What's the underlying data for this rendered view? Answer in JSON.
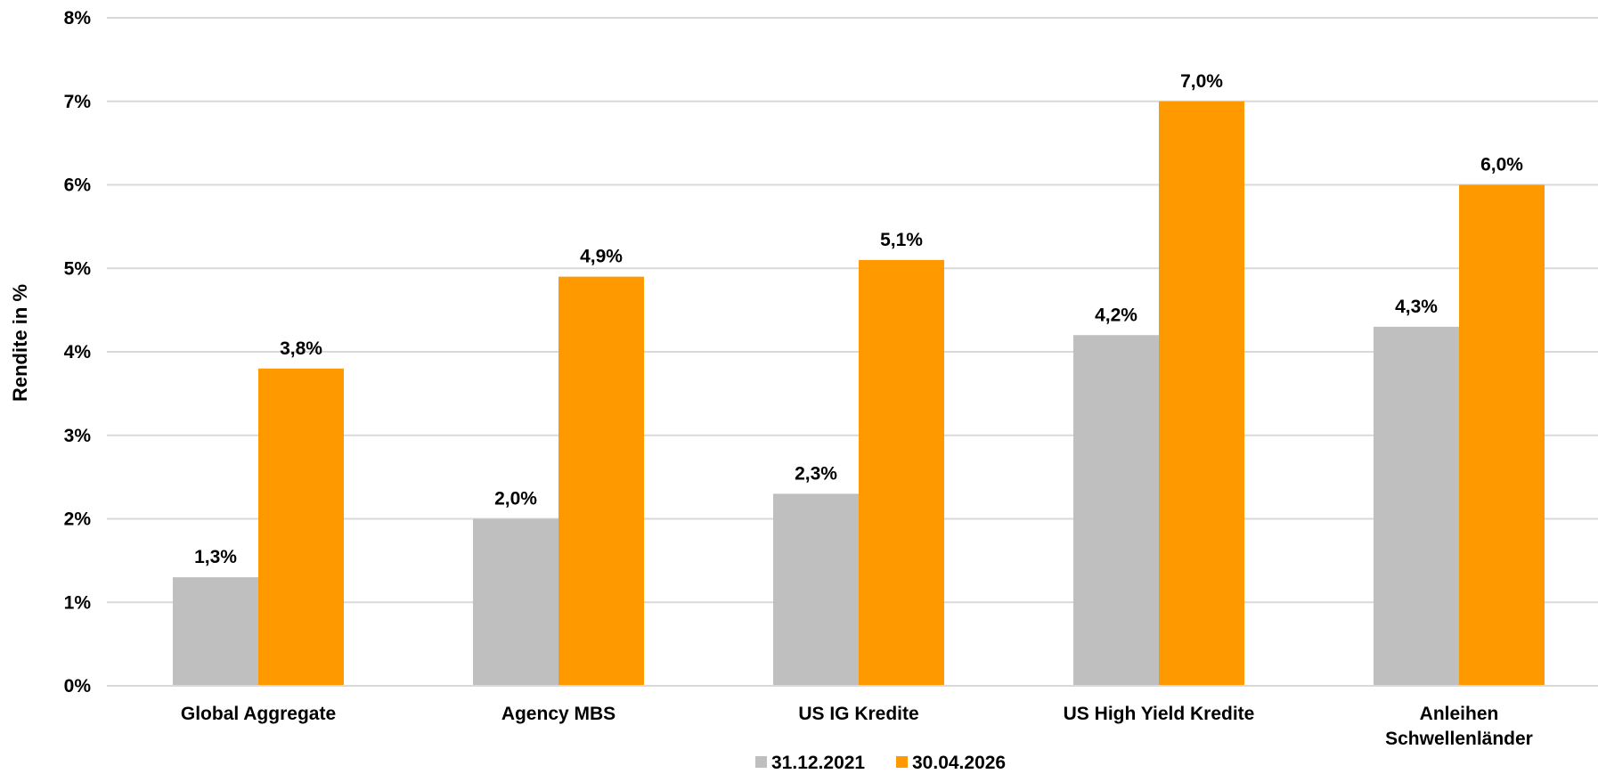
{
  "chart_data": {
    "type": "bar",
    "ylabel": "Rendite in %",
    "xlabel": "",
    "ylim": [
      0,
      8
    ],
    "y_ticks": [
      "0%",
      "1%",
      "2%",
      "3%",
      "4%",
      "5%",
      "6%",
      "7%",
      "8%"
    ],
    "grid": true,
    "legend_position": "bottom",
    "categories": [
      [
        "Global Aggregate"
      ],
      [
        "Agency MBS"
      ],
      [
        "US IG Kredite"
      ],
      [
        "US High Yield Kredite"
      ],
      [
        "Anleihen",
        "Schwellenländer"
      ]
    ],
    "series": [
      {
        "name": "31.12.2021",
        "color": "#bfbfbf",
        "values": [
          1.3,
          2.0,
          2.3,
          4.2,
          4.3
        ],
        "labels": [
          "1,3%",
          "2,0%",
          "2,3%",
          "4,2%",
          "4,3%"
        ]
      },
      {
        "name": "30.04.2026",
        "color": "#ff9900",
        "values": [
          3.8,
          4.9,
          5.1,
          7.0,
          6.0
        ],
        "labels": [
          "3,8%",
          "4,9%",
          "5,1%",
          "7,0%",
          "6,0%"
        ]
      }
    ]
  }
}
